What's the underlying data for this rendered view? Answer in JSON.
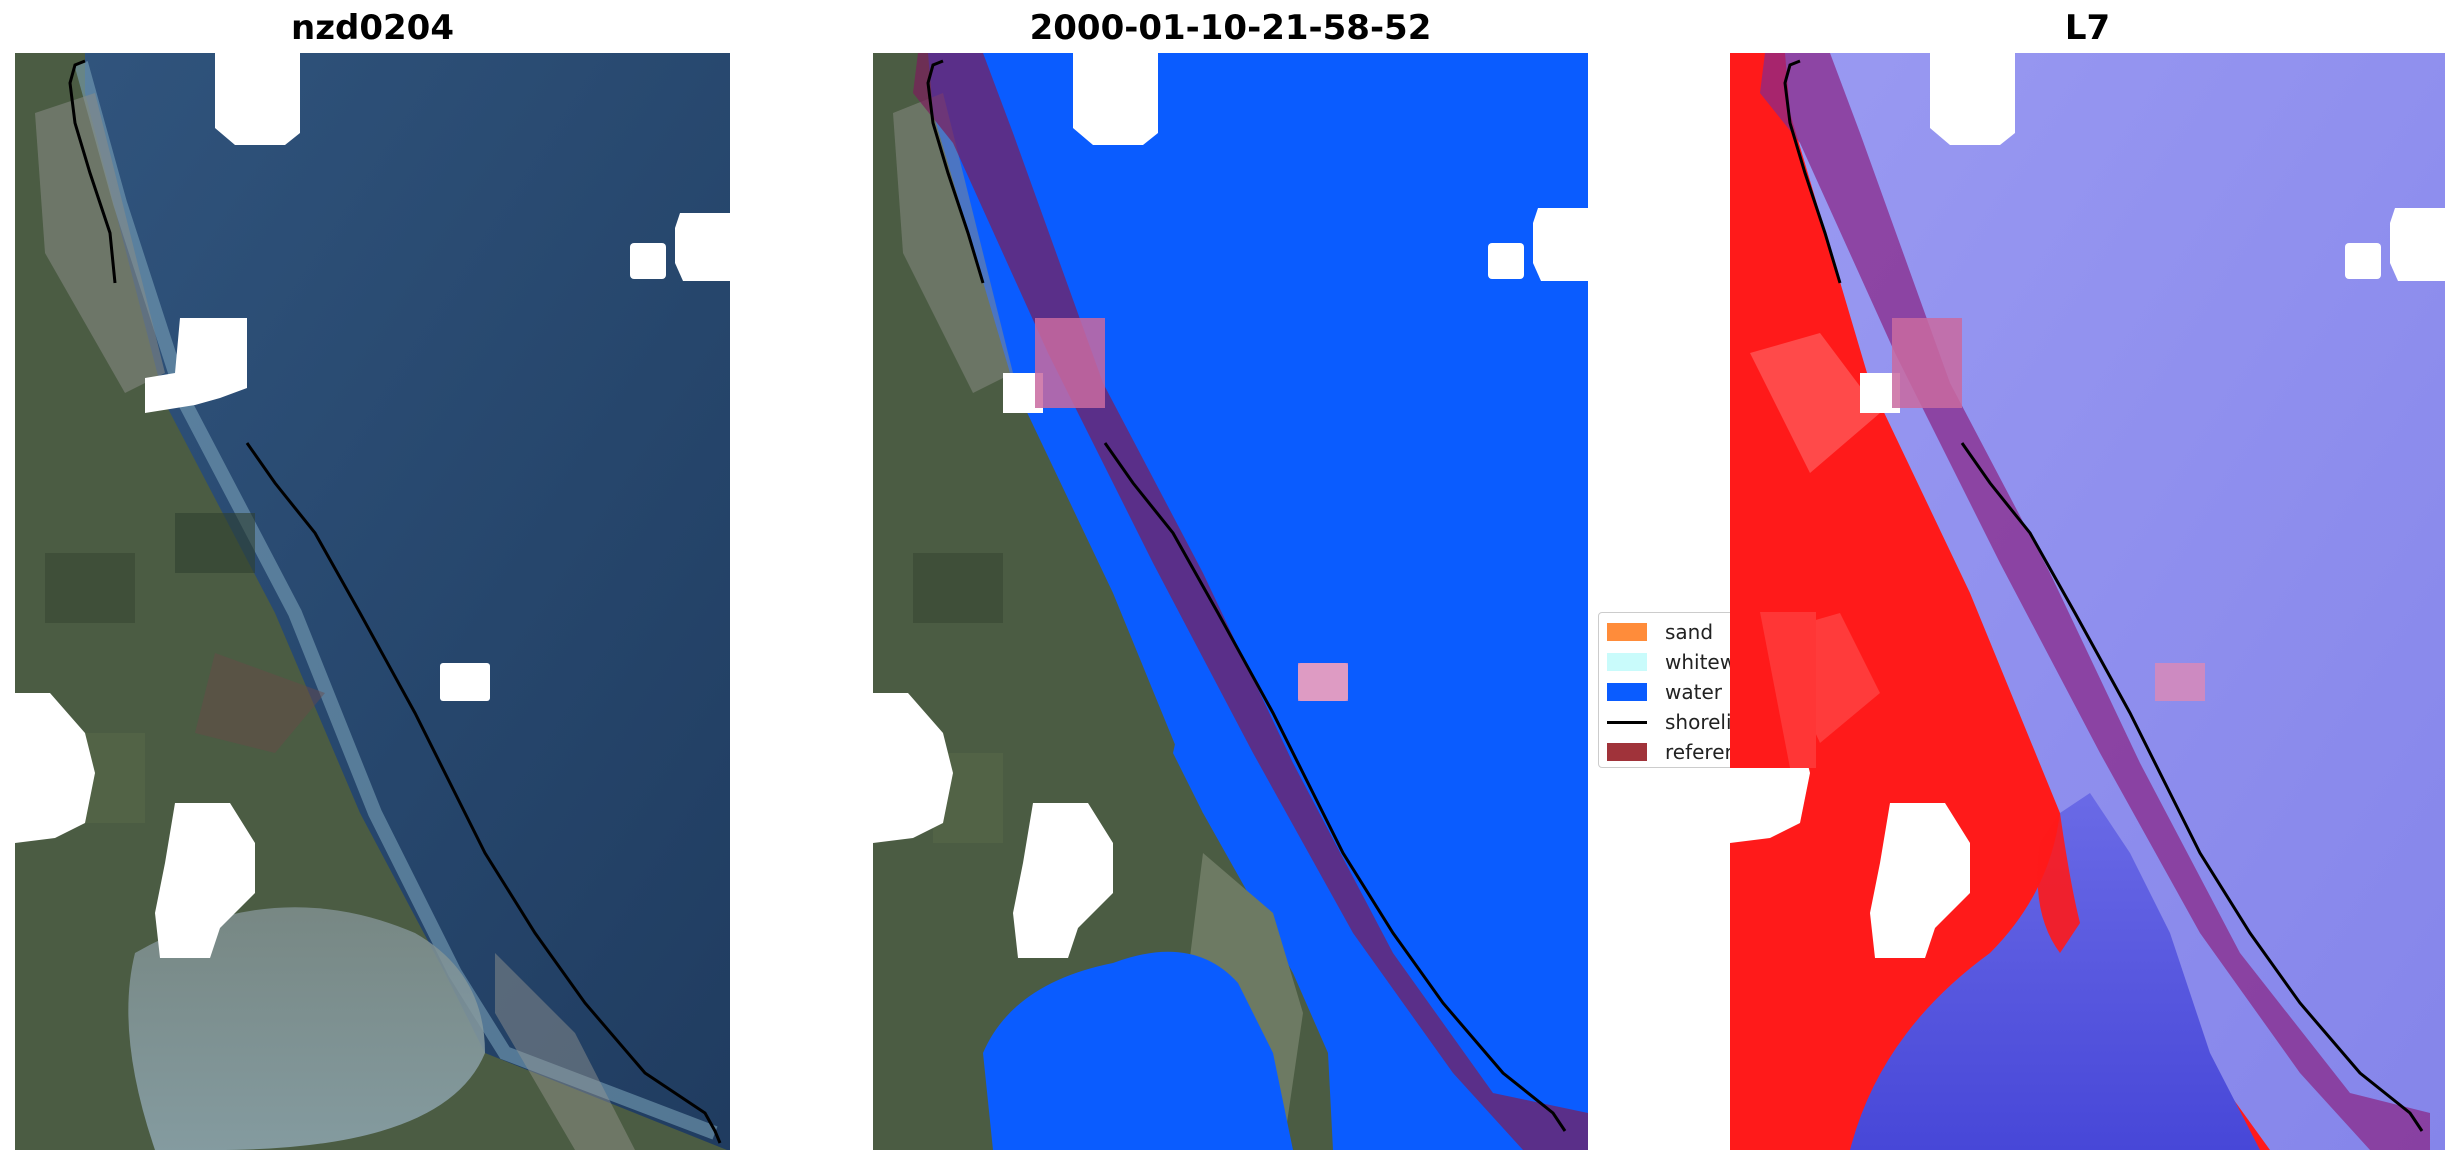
{
  "panels": [
    {
      "title": "nzd0204"
    },
    {
      "title": "2000-01-10-21-58-52"
    },
    {
      "title": "L7"
    }
  ],
  "legend": {
    "items": [
      {
        "label": "sand",
        "color": "#ff8c3a"
      },
      {
        "label": "whitewater",
        "color": "#c9fbfb"
      },
      {
        "label": "water",
        "color": "#0a5cff"
      },
      {
        "label": "shoreline",
        "color": "#000000"
      },
      {
        "label": "reference shoreline",
        "color": "#a0333a"
      }
    ]
  },
  "colors": {
    "ocean_rgb": "#2b4a73",
    "land_rgb": "#46573f",
    "water_class": "#0a5cff",
    "reference_buffer": "#7a1f5c",
    "cloud_mask": "#ffffff",
    "index_land": "#ff1a1a",
    "index_water": "#8a8af0"
  }
}
